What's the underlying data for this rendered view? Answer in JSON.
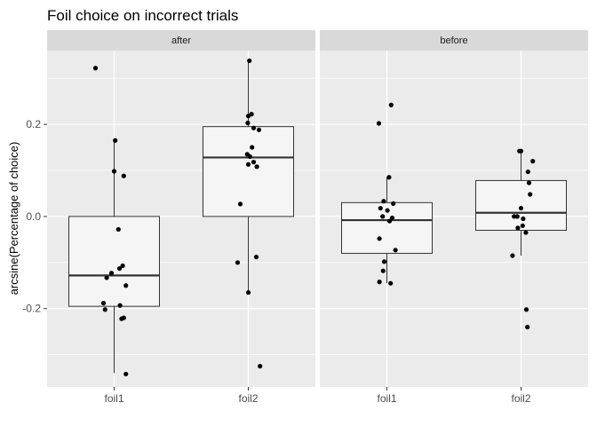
{
  "chart_data": {
    "type": "boxplot",
    "title": "Foil choice on incorrect trials",
    "xlabel": "",
    "ylabel": "arcsine(Percentage of choice)",
    "ylim": [
      -0.37,
      0.36
    ],
    "yticks": [
      -0.2,
      0.0,
      0.2
    ],
    "ytick_labels": [
      "-0.2",
      "0.0",
      "0.2"
    ],
    "categories": [
      "foil1",
      "foil2"
    ],
    "colors": {
      "panel_bg": "#ebebeb",
      "grid_major": "#ffffff",
      "strip_bg": "#d9d9d9",
      "box_fill": "#f5f5f5",
      "box_line": "#333333",
      "point": "#000000"
    },
    "facets": [
      {
        "label": "after",
        "groups": [
          {
            "category": "foil1",
            "box": {
              "lower_whisker": -0.34,
              "q1": -0.195,
              "median": -0.128,
              "q3": 0.0,
              "upper_whisker": 0.165
            },
            "points": [
              0.322,
              0.165,
              0.098,
              0.088,
              -0.028,
              -0.107,
              -0.113,
              -0.123,
              -0.133,
              -0.15,
              -0.188,
              -0.193,
              -0.202,
              -0.22,
              -0.222,
              -0.342
            ],
            "jitter": [
              -0.35,
              0.02,
              0.0,
              0.18,
              0.08,
              0.16,
              0.1,
              -0.05,
              -0.14,
              0.22,
              -0.2,
              0.11,
              -0.17,
              0.18,
              0.14,
              0.22
            ]
          },
          {
            "category": "foil2",
            "box": {
              "lower_whisker": -0.165,
              "q1": 0.0,
              "median": 0.128,
              "q3": 0.195,
              "upper_whisker": 0.338
            },
            "points": [
              0.338,
              0.222,
              0.218,
              0.203,
              0.192,
              0.188,
              0.15,
              0.135,
              0.13,
              0.118,
              0.113,
              0.108,
              0.027,
              -0.088,
              -0.1,
              -0.165,
              -0.325
            ],
            "jitter": [
              0.02,
              0.06,
              0.0,
              -0.01,
              0.1,
              0.2,
              0.07,
              -0.02,
              0.03,
              0.1,
              0.0,
              0.16,
              -0.15,
              0.15,
              -0.2,
              0.0,
              0.22
            ]
          }
        ]
      },
      {
        "label": "before",
        "groups": [
          {
            "category": "foil1",
            "box": {
              "lower_whisker": -0.145,
              "q1": -0.08,
              "median": -0.008,
              "q3": 0.03,
              "upper_whisker": 0.085
            },
            "points": [
              0.242,
              0.202,
              0.085,
              0.033,
              0.028,
              0.018,
              0.013,
              0.0,
              -0.003,
              -0.01,
              -0.048,
              -0.073,
              -0.098,
              -0.118,
              -0.142,
              -0.145
            ],
            "jitter": [
              0.08,
              -0.15,
              0.04,
              -0.06,
              0.12,
              -0.12,
              0.01,
              -0.08,
              0.1,
              0.05,
              -0.14,
              0.16,
              -0.05,
              -0.07,
              -0.14,
              0.07
            ]
          },
          {
            "category": "foil2",
            "box": {
              "lower_whisker": -0.085,
              "q1": -0.03,
              "median": 0.008,
              "q3": 0.078,
              "upper_whisker": 0.142
            },
            "points": [
              0.142,
              0.142,
              0.12,
              0.097,
              0.073,
              0.048,
              0.018,
              0.0,
              0.0,
              -0.005,
              -0.02,
              -0.025,
              -0.035,
              -0.085,
              -0.202,
              -0.24
            ],
            "jitter": [
              -0.03,
              0.0,
              0.22,
              0.13,
              0.15,
              0.17,
              0.0,
              -0.07,
              -0.13,
              0.04,
              0.03,
              -0.06,
              0.09,
              -0.16,
              0.1,
              0.12
            ]
          }
        ]
      }
    ]
  }
}
